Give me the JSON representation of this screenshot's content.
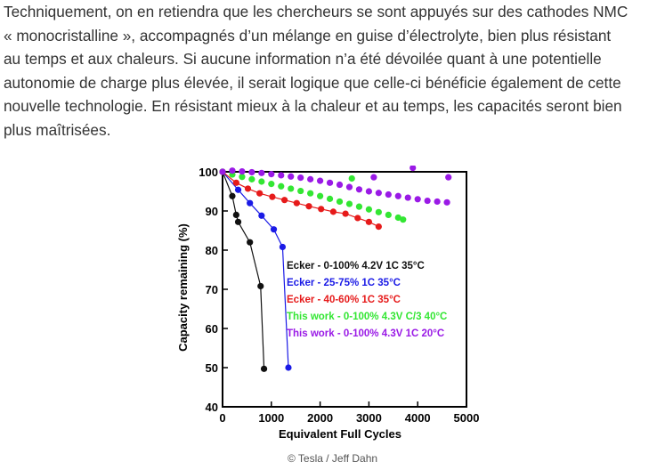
{
  "article": {
    "lines": [
      "Techniquement, on en retiendra que les chercheurs se sont appuyés sur des cathodes NMC",
      "« monocristalline », accompagnés d’un mélange en guise d’électrolyte, bien plus résistant",
      "au temps et aux chaleurs. Si aucune information n’a été dévoilée quant à une potentielle",
      "autonomie de charge plus élevée, il serait logique que celle-ci bénéficie également de cette",
      "nouvelle technologie. En résistant mieux à la chaleur et au temps, les capacités seront bien",
      "plus maîtrisées."
    ]
  },
  "caption": "© Tesla / Jeff Dahn",
  "chart_data": {
    "type": "scatter",
    "xlabel": "Equivalent Full Cycles",
    "ylabel": "Capacity remaining (%)",
    "xlim": [
      0,
      5000
    ],
    "ylim": [
      40,
      100
    ],
    "xticks": [
      "0",
      "1000",
      "2000",
      "3000",
      "4000",
      "5000"
    ],
    "yticks": [
      "40",
      "50",
      "60",
      "70",
      "80",
      "90",
      "100"
    ],
    "grid": false,
    "legend_position": "center-right",
    "series": [
      {
        "name": "Ecker - 0-100% 4.2V 1C 35°C",
        "color": "#111111",
        "connected": true,
        "points": [
          [
            0,
            100
          ],
          [
            200,
            93.8
          ],
          [
            280,
            89
          ],
          [
            320,
            87.2
          ],
          [
            560,
            82
          ],
          [
            780,
            70.8
          ],
          [
            850,
            49.7
          ]
        ]
      },
      {
        "name": "Ecker - 25-75% 1C 35°C",
        "color": "#1a1ae6",
        "connected": true,
        "points": [
          [
            0,
            100
          ],
          [
            320,
            95.4
          ],
          [
            560,
            92
          ],
          [
            800,
            88.8
          ],
          [
            1050,
            85.3
          ],
          [
            1230,
            80.8
          ],
          [
            1350,
            50
          ]
        ]
      },
      {
        "name": "Ecker - 40-60% 1C 35°C",
        "color": "#e61a1a",
        "connected": true,
        "points": [
          [
            0,
            100
          ],
          [
            280,
            97.2
          ],
          [
            520,
            95.7
          ],
          [
            760,
            94.5
          ],
          [
            1020,
            93.6
          ],
          [
            1270,
            92.8
          ],
          [
            1520,
            92
          ],
          [
            1770,
            91.2
          ],
          [
            2020,
            90.5
          ],
          [
            2270,
            89.8
          ],
          [
            2520,
            89.3
          ],
          [
            2770,
            88.2
          ],
          [
            3000,
            87.2
          ],
          [
            3200,
            86
          ]
        ]
      },
      {
        "name": "This work - 0-100% 4.3V C/3 40°C",
        "color": "#33e633",
        "connected": false,
        "points": [
          [
            0,
            100
          ],
          [
            200,
            99.3
          ],
          [
            400,
            98.7
          ],
          [
            600,
            98.1
          ],
          [
            800,
            97.5
          ],
          [
            1000,
            96.9
          ],
          [
            1200,
            96.3
          ],
          [
            1400,
            95.7
          ],
          [
            1600,
            95.1
          ],
          [
            1800,
            94.5
          ],
          [
            2000,
            93.8
          ],
          [
            2200,
            93.1
          ],
          [
            2400,
            92.4
          ],
          [
            2600,
            91.8
          ],
          [
            2800,
            91.1
          ],
          [
            3000,
            90.4
          ],
          [
            3200,
            89.7
          ],
          [
            3400,
            89
          ],
          [
            3600,
            88.3
          ],
          [
            3700,
            87.8
          ],
          [
            2650,
            98.3
          ]
        ]
      },
      {
        "name": "This work - 0-100% 4.3V 1C 20°C",
        "color": "#9a1ae6",
        "connected": false,
        "points": [
          [
            0,
            100
          ],
          [
            200,
            100.3
          ],
          [
            400,
            100.1
          ],
          [
            600,
            99.9
          ],
          [
            800,
            99.7
          ],
          [
            1000,
            99.4
          ],
          [
            1200,
            99.1
          ],
          [
            1400,
            98.8
          ],
          [
            1600,
            98.5
          ],
          [
            1800,
            98.1
          ],
          [
            2000,
            97.7
          ],
          [
            2200,
            97.2
          ],
          [
            2400,
            96.7
          ],
          [
            2600,
            96.1
          ],
          [
            2800,
            95.5
          ],
          [
            3000,
            95
          ],
          [
            3200,
            94.6
          ],
          [
            3400,
            94.2
          ],
          [
            3600,
            93.8
          ],
          [
            3800,
            93.4
          ],
          [
            4000,
            93
          ],
          [
            4200,
            92.6
          ],
          [
            4400,
            92.4
          ],
          [
            4600,
            92.2
          ],
          [
            3100,
            98.6
          ],
          [
            3900,
            101
          ],
          [
            4630,
            98.6
          ]
        ]
      }
    ]
  }
}
